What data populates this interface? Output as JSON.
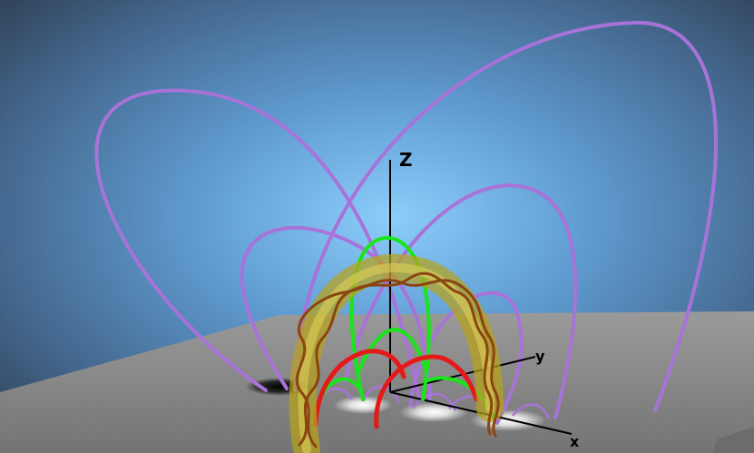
{
  "axes": {
    "z_label": "Z",
    "y_label": "y",
    "x_label": "x"
  },
  "colors": {
    "background_center": "#7cc0f3",
    "background_edge": "#34465c",
    "surface": "#8b8b8b",
    "field_lines": "#a873d9",
    "flux_rope_tube": "#b7a21a",
    "twisted_strands": "#8a4510",
    "green_loops": "#19e619",
    "red_loops": "#e61919",
    "axis": "#000000"
  },
  "icons": [
    "flux-rope-diagram"
  ]
}
